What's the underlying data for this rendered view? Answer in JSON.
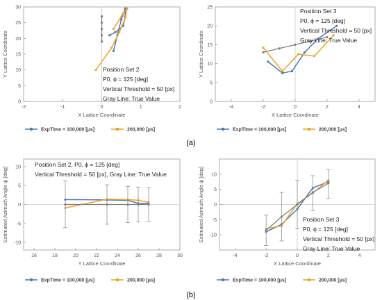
{
  "figure": {
    "label_a": "(a)",
    "label_b": "(b)"
  },
  "colors": {
    "blue": "#4a78b8",
    "orange": "#f0a020",
    "gray": "#7f7f7f",
    "axis": "#9a9a9a",
    "text": "#555555"
  },
  "legend": {
    "series1": "ExpTime = 100,000 [μs]",
    "series2": "200,000 [μs]"
  },
  "chart_data": [
    {
      "type": "line",
      "id": "a1",
      "xlabel": "X Lattice Coordinate",
      "ylabel": "Y Lattice Coordinate",
      "xlim": [
        -2,
        2
      ],
      "ylim": [
        0,
        30
      ],
      "xticks": [
        -2,
        -1,
        0,
        1,
        2
      ],
      "yticks": [
        0,
        5,
        10,
        15,
        20,
        25,
        30
      ],
      "annotation": [
        "Position Set 2",
        "P0, ϕ = 125 [deg]",
        "Vertical Threshold = 50 [px]",
        "Gray Line: True Value"
      ],
      "series": [
        {
          "name": "ExpTime = 100,000 [μs]",
          "color": "blue",
          "x": [
            0.3,
            0.4,
            0.5,
            0.6,
            0.6,
            0.55,
            0.35,
            0.2
          ],
          "y": [
            16,
            21,
            26,
            29.5,
            27,
            24,
            22,
            21
          ]
        },
        {
          "name": "200,000 [μs]",
          "color": "orange",
          "x": [
            -0.15,
            0.25,
            0.45,
            0.6,
            0.65,
            0.55,
            0.3
          ],
          "y": [
            10,
            17,
            22,
            26.5,
            29.5,
            28,
            23
          ]
        },
        {
          "name": "True Value",
          "color": "gray",
          "x": [
            0,
            0,
            0,
            0,
            0
          ],
          "y": [
            19,
            21,
            23,
            25,
            27
          ]
        }
      ]
    },
    {
      "type": "line",
      "id": "a2",
      "xlabel": "X Lattice Coordinate",
      "ylabel": "Y Lattice Coordinate",
      "xlim": [
        -5,
        5
      ],
      "ylim": [
        0,
        25
      ],
      "xticks": [
        -4,
        -2,
        0,
        2,
        4
      ],
      "yticks": [
        0,
        5,
        10,
        15,
        20,
        25
      ],
      "annotation": [
        "Position Set 3",
        "P0, ϕ = 125 [deg]",
        "Vertical Threshold = 50 [px]",
        "Gray Line: True Value"
      ],
      "series": [
        {
          "name": "ExpTime = 100,000 [μs]",
          "color": "blue",
          "x": [
            -1.7,
            -0.8,
            -0.2,
            0.6,
            1.4,
            2.6
          ],
          "y": [
            10.5,
            7.5,
            8,
            13,
            16.5,
            20
          ]
        },
        {
          "name": "200,000 [μs]",
          "color": "orange",
          "x": [
            -2.0,
            -0.8,
            0.2,
            1.2,
            2.4
          ],
          "y": [
            14.2,
            8,
            12.5,
            12,
            17.5
          ]
        },
        {
          "name": "True Value",
          "color": "gray",
          "x": [
            -2,
            -1,
            0,
            1,
            2
          ],
          "y": [
            13,
            14,
            15,
            16,
            17
          ]
        }
      ]
    },
    {
      "type": "line",
      "id": "b1",
      "xlabel": "Y Lattice Coordinate",
      "ylabel": "Estimated Azimuth Angle ψ [deg]",
      "xlim": [
        15,
        30
      ],
      "ylim": [
        -12,
        12
      ],
      "xticks": [
        16,
        18,
        20,
        22,
        24,
        26,
        28,
        30
      ],
      "yticks": [
        -10,
        -5,
        0,
        5,
        10
      ],
      "annotation": [
        "Position Set 2, P0, ϕ = 125 [deg]",
        "Vertical Threshold = 50 [px], Gray Line: True Value"
      ],
      "series": [
        {
          "name": "ExpTime = 100,000 [μs]",
          "color": "blue",
          "x": [
            19,
            23,
            25,
            26,
            27
          ],
          "y": [
            1.3,
            1.2,
            1.1,
            0.3,
            0.3
          ]
        },
        {
          "name": "200,000 [μs]",
          "color": "orange",
          "x": [
            19,
            23,
            25,
            26,
            27
          ],
          "y": [
            -0.9,
            1.4,
            1.3,
            1.1,
            0.6
          ]
        },
        {
          "name": "True Value",
          "color": "gray",
          "x": [
            19,
            23,
            25,
            26,
            27
          ],
          "y": [
            0,
            0,
            0,
            0,
            0
          ],
          "err_low": [
            -6.1,
            -5.2,
            -4.8,
            -4.6,
            -4.4
          ],
          "err_high": [
            6.2,
            5.2,
            4.8,
            4.6,
            4.5
          ]
        }
      ]
    },
    {
      "type": "line",
      "id": "b2",
      "xlabel": "X Lattice Coordinate",
      "ylabel": "Estimated Azimuth Angle ψ [deg]",
      "xlim": [
        -5,
        5
      ],
      "ylim": [
        -15,
        15
      ],
      "xticks": [
        -4,
        -2,
        0,
        2,
        4
      ],
      "yticks": [
        -10,
        -5,
        0,
        5,
        10
      ],
      "annotation": [
        "Position Set 3",
        "P0, ϕ = 125 [deg]",
        "Vertical Threshold = 50 [px]",
        "Gray Line: True Value"
      ],
      "series": [
        {
          "name": "ExpTime = 100,000 [μs]",
          "color": "blue",
          "x": [
            -2,
            -1,
            0,
            1,
            2
          ],
          "y": [
            -9,
            -6.5,
            -1.5,
            5.5,
            7.5
          ]
        },
        {
          "name": "200,000 [μs]",
          "color": "orange",
          "x": [
            -2,
            -1,
            0,
            1,
            2
          ],
          "y": [
            -8,
            -7,
            0.3,
            3.8,
            8
          ]
        },
        {
          "name": "True Value",
          "color": "gray",
          "x": [
            -2,
            -1,
            0,
            1,
            2
          ],
          "y": [
            -8.5,
            -4,
            0,
            4,
            7
          ],
          "err_low": [
            -13.5,
            -12,
            -8,
            -2,
            2
          ],
          "err_high": [
            -3.5,
            4,
            8,
            9.5,
            11.5
          ]
        }
      ]
    }
  ]
}
